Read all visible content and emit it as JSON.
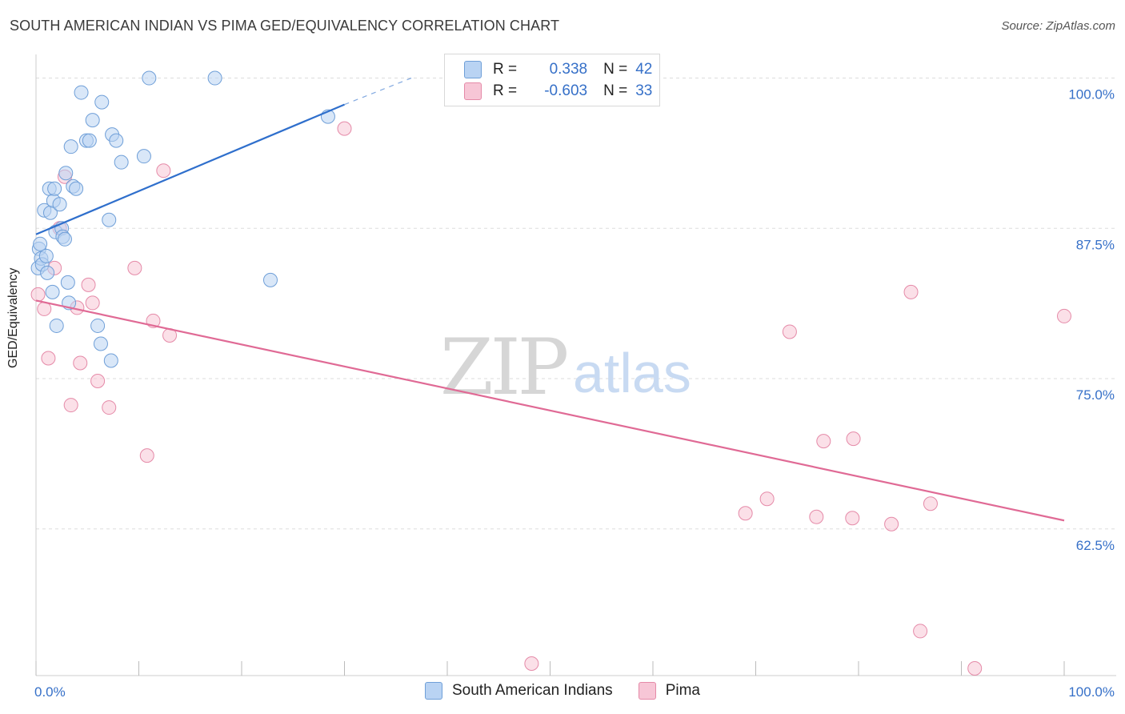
{
  "title": "SOUTH AMERICAN INDIAN VS PIMA GED/EQUIVALENCY CORRELATION CHART",
  "source": "Source: ZipAtlas.com",
  "watermark": {
    "zip": "ZIP",
    "atlas": "atlas"
  },
  "legend": {
    "rows": [
      {
        "r_label": "R =",
        "r_value": "0.338",
        "n_label": "N =",
        "n_value": "42"
      },
      {
        "r_label": "R =",
        "r_value": "-0.603",
        "n_label": "N =",
        "n_value": "33"
      }
    ]
  },
  "bottom_legend": {
    "blue": "South American Indians",
    "pink": "Pima"
  },
  "colors": {
    "blue_fill": "#b9d3f3",
    "blue_stroke": "#6f9fd8",
    "blue_line": "#2f6fcc",
    "pink_fill": "#f7c6d6",
    "pink_stroke": "#e58aa8",
    "pink_line": "#e06a95",
    "grid": "#dddddd",
    "tick_label": "#3670c8"
  },
  "chart_data": {
    "type": "scatter",
    "title": "SOUTH AMERICAN INDIAN VS PIMA GED/EQUIVALENCY CORRELATION CHART",
    "xlabel": "",
    "ylabel": "GED/Equivalency",
    "xlim": [
      0,
      100
    ],
    "ylim": [
      50.3,
      102.5
    ],
    "x_tick_labels": [
      "0.0%",
      "100.0%"
    ],
    "y_ticks": [
      62.5,
      75.0,
      87.5,
      100.0
    ],
    "y_tick_labels": [
      "62.5%",
      "75.0%",
      "87.5%",
      "100.0%"
    ],
    "series": [
      {
        "name": "South American Indians",
        "color": "blue",
        "r": 0.338,
        "n": 42,
        "points": [
          [
            0.2,
            84.2
          ],
          [
            0.3,
            85.8
          ],
          [
            0.4,
            86.2
          ],
          [
            0.5,
            85.0
          ],
          [
            0.6,
            84.5
          ],
          [
            0.8,
            89.0
          ],
          [
            1.0,
            85.2
          ],
          [
            1.1,
            83.8
          ],
          [
            1.3,
            90.8
          ],
          [
            1.4,
            88.8
          ],
          [
            1.6,
            82.2
          ],
          [
            1.7,
            89.8
          ],
          [
            1.8,
            90.8
          ],
          [
            1.9,
            87.2
          ],
          [
            2.0,
            79.4
          ],
          [
            2.3,
            89.5
          ],
          [
            2.5,
            87.5
          ],
          [
            2.6,
            86.8
          ],
          [
            2.8,
            86.6
          ],
          [
            2.9,
            92.1
          ],
          [
            3.1,
            83.0
          ],
          [
            3.2,
            81.3
          ],
          [
            3.4,
            94.3
          ],
          [
            3.6,
            91.0
          ],
          [
            3.9,
            90.8
          ],
          [
            4.4,
            98.8
          ],
          [
            4.9,
            94.8
          ],
          [
            5.2,
            94.8
          ],
          [
            5.5,
            96.5
          ],
          [
            6.0,
            79.4
          ],
          [
            6.3,
            77.9
          ],
          [
            6.4,
            98.0
          ],
          [
            7.1,
            88.2
          ],
          [
            7.3,
            76.5
          ],
          [
            7.4,
            95.3
          ],
          [
            7.8,
            94.8
          ],
          [
            8.3,
            93.0
          ],
          [
            10.5,
            93.5
          ],
          [
            11.0,
            100.0
          ],
          [
            17.4,
            100.0
          ],
          [
            22.8,
            83.2
          ],
          [
            28.4,
            96.8
          ]
        ],
        "trend": {
          "x0": 0,
          "y0": 87.0,
          "x1": 30,
          "y1": 97.8,
          "dash_to_x": 36.5,
          "dash_to_y": 100.0
        }
      },
      {
        "name": "Pima",
        "color": "pink",
        "r": -0.603,
        "n": 33,
        "points": [
          [
            0.2,
            82.0
          ],
          [
            0.8,
            80.8
          ],
          [
            1.2,
            76.7
          ],
          [
            1.8,
            84.2
          ],
          [
            2.3,
            87.5
          ],
          [
            2.8,
            91.8
          ],
          [
            3.4,
            72.8
          ],
          [
            4.0,
            80.9
          ],
          [
            4.3,
            76.3
          ],
          [
            5.1,
            82.8
          ],
          [
            5.5,
            81.3
          ],
          [
            6.0,
            74.8
          ],
          [
            7.1,
            72.6
          ],
          [
            9.6,
            84.2
          ],
          [
            10.8,
            68.6
          ],
          [
            11.4,
            79.8
          ],
          [
            12.4,
            92.3
          ],
          [
            13.0,
            78.6
          ],
          [
            30.0,
            95.8
          ],
          [
            48.2,
            51.3
          ],
          [
            69.0,
            63.8
          ],
          [
            71.1,
            65.0
          ],
          [
            73.3,
            78.9
          ],
          [
            75.9,
            63.5
          ],
          [
            76.6,
            69.8
          ],
          [
            79.4,
            63.4
          ],
          [
            79.5,
            70.0
          ],
          [
            83.2,
            62.9
          ],
          [
            85.1,
            82.2
          ],
          [
            86.0,
            54.0
          ],
          [
            87.0,
            64.6
          ],
          [
            91.3,
            50.9
          ],
          [
            100.0,
            80.2
          ]
        ],
        "trend": {
          "x0": 0,
          "y0": 81.5,
          "x1": 100,
          "y1": 63.2
        }
      }
    ]
  }
}
